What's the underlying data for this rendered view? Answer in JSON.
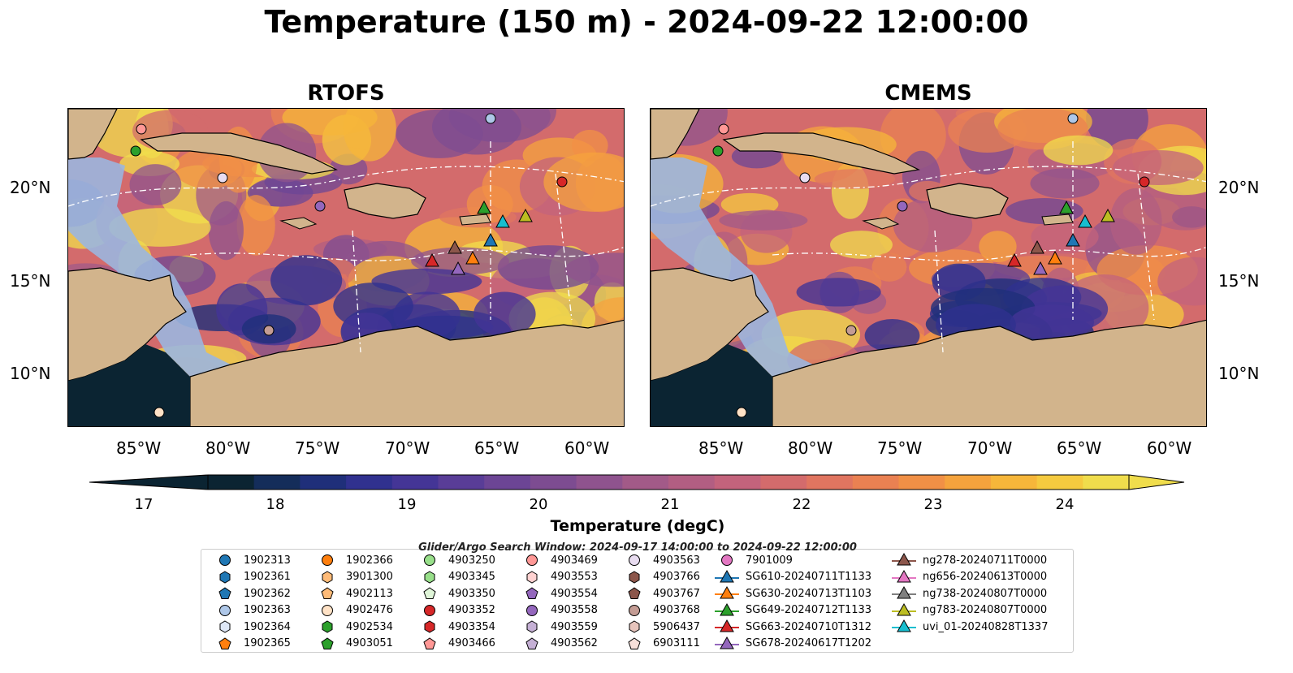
{
  "title": "Temperature (150 m) - 2024-09-22 12:00:00",
  "panels": [
    {
      "title": "RTOFS"
    },
    {
      "title": "CMEMS"
    }
  ],
  "axes": {
    "lat_labels": [
      "20°N",
      "15°N",
      "10°N"
    ],
    "lon_labels": [
      "85°W",
      "80°W",
      "75°W",
      "70°W",
      "65°W",
      "60°W"
    ]
  },
  "colorbar": {
    "label": "Temperature (degC)",
    "ticks": [
      "17",
      "18",
      "19",
      "20",
      "21",
      "22",
      "23",
      "24"
    ],
    "min": 16.5,
    "max": 24.5,
    "colors": [
      "#0b2432",
      "#142d5a",
      "#1f2f7a",
      "#30318f",
      "#443596",
      "#593d97",
      "#6c4595",
      "#7d4c91",
      "#8f538e",
      "#a25a88",
      "#b25e82",
      "#c3637c",
      "#d36b6c",
      "#e07560",
      "#ea8152",
      "#f19046",
      "#f5a33d",
      "#f6b63a",
      "#f5ca3f",
      "#f0dd4c"
    ],
    "extend": "both"
  },
  "colors": {
    "land": "#d2b48c",
    "shelf": "#9bb6df",
    "deep_ocean": "#0b2432"
  },
  "search_window": "Glider/Argo Search Window: 2024-09-17 14:00:00 to 2024-09-22 12:00:00",
  "legend": {
    "columns": [
      [
        {
          "label": "1902313",
          "marker": "circle",
          "color": "#1f77b4"
        },
        {
          "label": "1902361",
          "marker": "hexagon",
          "color": "#1f77b4"
        },
        {
          "label": "1902362",
          "marker": "pentagon",
          "color": "#1f77b4"
        },
        {
          "label": "1902363",
          "marker": "circle",
          "color": "#aec7e8"
        },
        {
          "label": "1902364",
          "marker": "hexagon",
          "color": "#dfe8f7"
        },
        {
          "label": "1902365",
          "marker": "pentagon",
          "color": "#ff7f0e"
        }
      ],
      [
        {
          "label": "1902366",
          "marker": "circle",
          "color": "#ff7f0e"
        },
        {
          "label": "3901300",
          "marker": "hexagon",
          "color": "#ffbb78"
        },
        {
          "label": "4902113",
          "marker": "pentagon",
          "color": "#ffbb78"
        },
        {
          "label": "4902476",
          "marker": "circle",
          "color": "#ffe2c6"
        },
        {
          "label": "4902534",
          "marker": "hexagon",
          "color": "#2ca02c"
        },
        {
          "label": "4903051",
          "marker": "pentagon",
          "color": "#2ca02c"
        }
      ],
      [
        {
          "label": "4903250",
          "marker": "circle",
          "color": "#98df8a"
        },
        {
          "label": "4903345",
          "marker": "hexagon",
          "color": "#98df8a"
        },
        {
          "label": "4903350",
          "marker": "pentagon",
          "color": "#dff5d8"
        },
        {
          "label": "4903352",
          "marker": "circle",
          "color": "#d62728"
        },
        {
          "label": "4903354",
          "marker": "hexagon",
          "color": "#d62728"
        },
        {
          "label": "4903466",
          "marker": "pentagon",
          "color": "#ff9896"
        }
      ],
      [
        {
          "label": "4903469",
          "marker": "circle",
          "color": "#ff9896"
        },
        {
          "label": "4903553",
          "marker": "hexagon",
          "color": "#ffd2d1"
        },
        {
          "label": "4903554",
          "marker": "pentagon",
          "color": "#9467bd"
        },
        {
          "label": "4903558",
          "marker": "circle",
          "color": "#9467bd"
        },
        {
          "label": "4903559",
          "marker": "hexagon",
          "color": "#c5b0d5"
        },
        {
          "label": "4903562",
          "marker": "pentagon",
          "color": "#c5b0d5"
        }
      ],
      [
        {
          "label": "4903563",
          "marker": "circle",
          "color": "#e8dcf0"
        },
        {
          "label": "4903766",
          "marker": "hexagon",
          "color": "#8c564b"
        },
        {
          "label": "4903767",
          "marker": "pentagon",
          "color": "#8c564b"
        },
        {
          "label": "4903768",
          "marker": "circle",
          "color": "#c49c94"
        },
        {
          "label": "5906437",
          "marker": "hexagon",
          "color": "#e6c4bc"
        },
        {
          "label": "6903111",
          "marker": "pentagon",
          "color": "#f7e0da"
        }
      ],
      [
        {
          "label": "7901009",
          "marker": "circle",
          "color": "#e377c2"
        },
        {
          "label": "SG610-20240711T1133",
          "marker": "triangle-line",
          "color": "#1f77b4"
        },
        {
          "label": "SG630-20240713T1103",
          "marker": "triangle-line",
          "color": "#ff7f0e"
        },
        {
          "label": "SG649-20240712T1133",
          "marker": "triangle-line",
          "color": "#2ca02c"
        },
        {
          "label": "SG663-20240710T1312",
          "marker": "triangle-line",
          "color": "#d62728"
        },
        {
          "label": "SG678-20240617T1202",
          "marker": "triangle-line",
          "color": "#9467bd"
        }
      ],
      [
        {
          "label": "ng278-20240711T0000",
          "marker": "triangle-line",
          "color": "#8c564b"
        },
        {
          "label": "ng656-20240613T0000",
          "marker": "triangle-line",
          "color": "#e377c2"
        },
        {
          "label": "ng738-20240807T0000",
          "marker": "triangle-line",
          "color": "#7f7f7f"
        },
        {
          "label": "ng783-20240807T0000",
          "marker": "triangle-line",
          "color": "#bcbd22"
        },
        {
          "label": "uvi_01-20240828T1337",
          "marker": "triangle-line",
          "color": "#17becf"
        }
      ]
    ]
  }
}
